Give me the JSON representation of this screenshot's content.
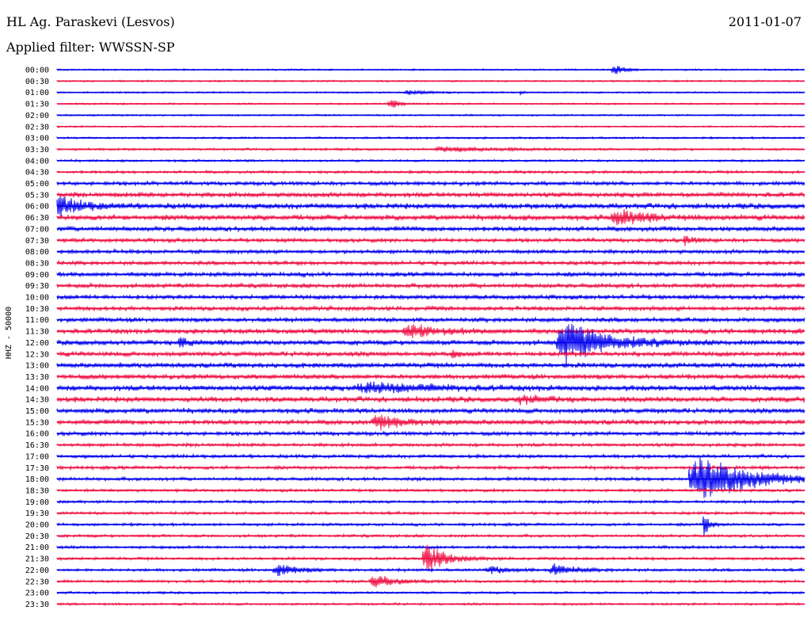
{
  "header": {
    "station": "HL Ag. Paraskevi (Lesvos)",
    "date": "2011-01-07",
    "filter": "Applied filter: WWSSN-SP"
  },
  "chart_data": {
    "type": "line",
    "title": "HL Ag. Paraskevi (Lesvos)",
    "subtitle": "Applied filter: WWSSN-SP",
    "ylabel": "HHZ - 50000",
    "trace_colors": [
      "#0000ee",
      "#ee1144"
    ],
    "rows": [
      "00:00",
      "00:30",
      "01:00",
      "01:30",
      "02:00",
      "02:30",
      "03:00",
      "03:30",
      "04:00",
      "04:30",
      "05:00",
      "05:30",
      "06:00",
      "06:30",
      "07:00",
      "07:30",
      "08:00",
      "08:30",
      "09:00",
      "09:30",
      "10:00",
      "10:30",
      "11:00",
      "11:30",
      "12:00",
      "12:30",
      "13:00",
      "13:30",
      "14:00",
      "14:30",
      "15:00",
      "15:30",
      "16:00",
      "16:30",
      "17:00",
      "17:30",
      "18:00",
      "18:30",
      "19:00",
      "19:30",
      "20:00",
      "20:30",
      "21:00",
      "21:30",
      "22:00",
      "22:30",
      "23:00",
      "23:30"
    ],
    "noise_level": [
      0.15,
      0.15,
      0.15,
      0.15,
      0.15,
      0.15,
      0.18,
      0.2,
      0.2,
      0.25,
      0.35,
      0.45,
      0.5,
      0.5,
      0.45,
      0.35,
      0.35,
      0.35,
      0.4,
      0.4,
      0.4,
      0.4,
      0.4,
      0.45,
      0.45,
      0.45,
      0.45,
      0.45,
      0.5,
      0.5,
      0.45,
      0.45,
      0.35,
      0.3,
      0.3,
      0.3,
      0.3,
      0.25,
      0.25,
      0.25,
      0.25,
      0.25,
      0.25,
      0.25,
      0.25,
      0.25,
      0.2,
      0.2
    ],
    "events": [
      {
        "row": 0,
        "position": 0.745,
        "amplitude": 1.2,
        "width": 0.02
      },
      {
        "row": 2,
        "position": 0.47,
        "amplitude": 0.4,
        "width": 0.04
      },
      {
        "row": 2,
        "position": 0.62,
        "amplitude": 0.6,
        "width": 0.005
      },
      {
        "row": 3,
        "position": 0.445,
        "amplitude": 1.2,
        "width": 0.02
      },
      {
        "row": 7,
        "position": 0.52,
        "amplitude": 0.5,
        "width": 0.1
      },
      {
        "row": 12,
        "position": 0.0,
        "amplitude": 2.0,
        "width": 0.05
      },
      {
        "row": 13,
        "position": 0.75,
        "amplitude": 1.5,
        "width": 0.06
      },
      {
        "row": 15,
        "position": 0.84,
        "amplitude": 1.0,
        "width": 0.02
      },
      {
        "row": 23,
        "position": 0.47,
        "amplitude": 1.3,
        "width": 0.06
      },
      {
        "row": 24,
        "position": 0.68,
        "amplitude": 4.5,
        "width": 0.08
      },
      {
        "row": 24,
        "position": 0.165,
        "amplitude": 0.9,
        "width": 0.03
      },
      {
        "row": 25,
        "position": 0.53,
        "amplitude": 0.8,
        "width": 0.01
      },
      {
        "row": 28,
        "position": 0.42,
        "amplitude": 1.0,
        "width": 0.12
      },
      {
        "row": 29,
        "position": 0.62,
        "amplitude": 0.8,
        "width": 0.05
      },
      {
        "row": 31,
        "position": 0.43,
        "amplitude": 1.4,
        "width": 0.06
      },
      {
        "row": 36,
        "position": 0.86,
        "amplitude": 5.0,
        "width": 0.1
      },
      {
        "row": 40,
        "position": 0.865,
        "amplitude": 3.0,
        "width": 0.01
      },
      {
        "row": 43,
        "position": 0.495,
        "amplitude": 3.0,
        "width": 0.04
      },
      {
        "row": 44,
        "position": 0.295,
        "amplitude": 1.2,
        "width": 0.04
      },
      {
        "row": 44,
        "position": 0.58,
        "amplitude": 0.7,
        "width": 0.04
      },
      {
        "row": 44,
        "position": 0.665,
        "amplitude": 1.2,
        "width": 0.04
      },
      {
        "row": 45,
        "position": 0.425,
        "amplitude": 1.5,
        "width": 0.04
      }
    ]
  }
}
